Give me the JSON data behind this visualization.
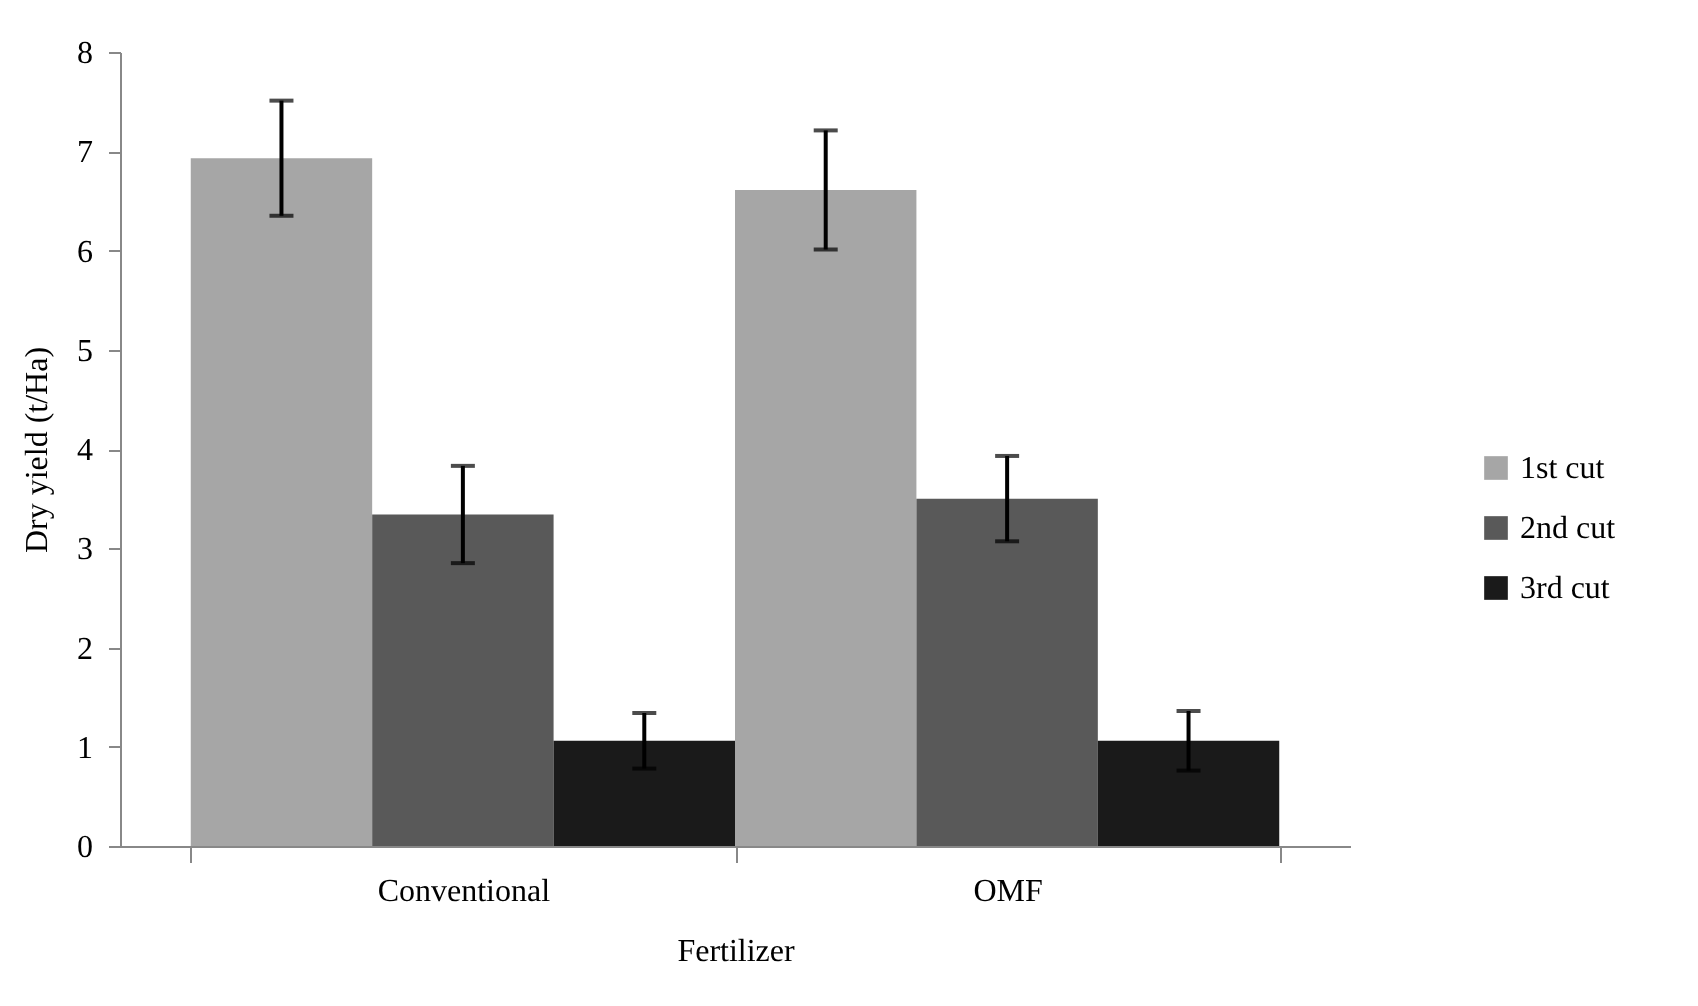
{
  "chart_data": {
    "type": "bar",
    "xlabel": "Fertilizer",
    "ylabel": "Dry yield (t/Ha)",
    "categories": [
      "Conventional",
      "OMF"
    ],
    "series": [
      {
        "name": "1st cut",
        "color": "#a6a6a6",
        "values": [
          6.93,
          6.61
        ],
        "errors": [
          0.58,
          0.6
        ]
      },
      {
        "name": "2nd cut",
        "color": "#595959",
        "values": [
          3.34,
          3.5
        ],
        "errors": [
          0.49,
          0.43
        ]
      },
      {
        "name": "3rd cut",
        "color": "#1a1a1a",
        "values": [
          1.06,
          1.06
        ],
        "errors": [
          0.28,
          0.3
        ]
      }
    ],
    "ylim": [
      0,
      8
    ],
    "yticks": [
      0,
      1,
      2,
      3,
      4,
      5,
      6,
      7,
      8
    ],
    "grid": false,
    "legend": "right"
  }
}
